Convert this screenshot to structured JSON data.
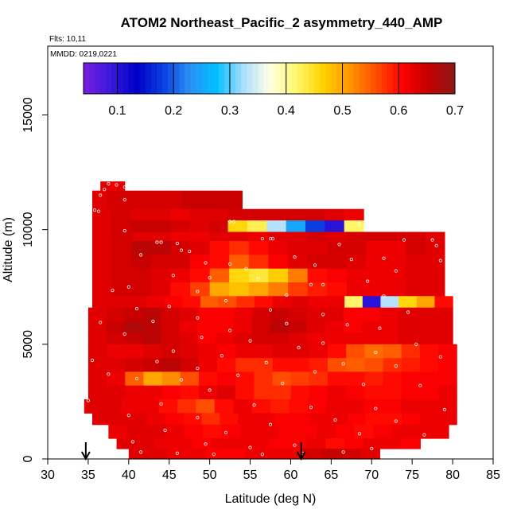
{
  "chart_data": {
    "type": "heatmap",
    "title": "ATOM2 Northeast_Pacific_2 asymmetry_440_AMP",
    "flights_label": "Flts: 10,11",
    "dates_label": "MMDD: 0219,0221",
    "xlabel": "Latitude (deg N)",
    "ylabel": "Altitude (m)",
    "xlim": [
      30,
      85
    ],
    "ylim": [
      0,
      18000
    ],
    "xticks": [
      "30",
      "35",
      "40",
      "45",
      "50",
      "55",
      "60",
      "65",
      "70",
      "75",
      "80",
      "85"
    ],
    "yticks": [
      "0",
      "5000",
      "10000",
      "15000"
    ],
    "colorbar": {
      "range": [
        0.04,
        0.7
      ],
      "ticks": [
        "0.1",
        "0.2",
        "0.3",
        "0.4",
        "0.5",
        "0.6",
        "0.7"
      ],
      "colors": [
        "#7a1fe0",
        "#3a1adb",
        "#0000c8",
        "#0b3fe0",
        "#2a8ff5",
        "#00c0ff",
        "#a8dcff",
        "#ffffe6",
        "#fff870",
        "#ffd400",
        "#ff9800",
        "#ff5000",
        "#ff0000",
        "#c40000",
        "#8b1a1a"
      ]
    },
    "arrows_at_latitude": [
      34.7,
      61.3
    ],
    "layers": [
      {
        "alt": [
          11700,
          12100
        ],
        "lat": [
          36.5,
          39.5
        ],
        "values": [
          0.63,
          0.62,
          0.63
        ]
      },
      {
        "alt": [
          10900,
          11700
        ],
        "lat": [
          35.5,
          54.0
        ],
        "values": [
          0.63,
          0.64,
          0.64,
          0.64,
          0.64,
          0.64,
          0.65,
          0.65,
          0.65,
          0.65
        ]
      },
      {
        "alt": [
          10400,
          10900
        ],
        "lat": [
          35.5,
          69.0
        ],
        "values": [
          0.63,
          0.64,
          0.63,
          0.63,
          0.62,
          0.63,
          0.63,
          0.64,
          0.64,
          0.64,
          0.64,
          0.64,
          0.63,
          0.62
        ]
      },
      {
        "alt": [
          9900,
          10400
        ],
        "lat": [
          35.5,
          69.0
        ],
        "values": [
          0.63,
          0.64,
          0.65,
          0.65,
          0.64,
          0.63,
          0.64,
          0.46,
          0.43,
          0.33,
          0.25,
          0.18,
          0.1,
          0.42
        ]
      },
      {
        "alt": [
          9500,
          9900
        ],
        "lat": [
          35.5,
          79.0
        ],
        "values": [
          0.63,
          0.64,
          0.63,
          0.63,
          0.62,
          0.62,
          0.63,
          0.63,
          0.62,
          0.63,
          0.63,
          0.64,
          0.63,
          0.64,
          0.64,
          0.64,
          0.64,
          0.63
        ]
      },
      {
        "alt": [
          8900,
          9500
        ],
        "lat": [
          35.5,
          79.0
        ],
        "values": [
          0.63,
          0.64,
          0.66,
          0.66,
          0.64,
          0.63,
          0.6,
          0.58,
          0.6,
          0.62,
          0.63,
          0.63,
          0.64,
          0.64,
          0.62,
          0.62,
          0.64,
          0.63
        ]
      },
      {
        "alt": [
          8300,
          8900
        ],
        "lat": [
          35.5,
          79.0
        ],
        "values": [
          0.63,
          0.64,
          0.65,
          0.64,
          0.64,
          0.61,
          0.6,
          0.55,
          0.58,
          0.61,
          0.63,
          0.64,
          0.64,
          0.63,
          0.62,
          0.62,
          0.63,
          0.63
        ]
      },
      {
        "alt": [
          7700,
          8300
        ],
        "lat": [
          35.5,
          79.0
        ],
        "values": [
          0.63,
          0.64,
          0.64,
          0.63,
          0.62,
          0.6,
          0.55,
          0.46,
          0.44,
          0.47,
          0.53,
          0.6,
          0.61,
          0.62,
          0.62,
          0.62,
          0.63,
          0.63
        ]
      },
      {
        "alt": [
          7100,
          7700
        ],
        "lat": [
          35.5,
          79.0
        ],
        "values": [
          0.63,
          0.64,
          0.64,
          0.63,
          0.6,
          0.57,
          0.5,
          0.48,
          0.5,
          0.53,
          0.57,
          0.59,
          0.6,
          0.62,
          0.62,
          0.62,
          0.63,
          0.63
        ]
      },
      {
        "alt": [
          6600,
          7100
        ],
        "lat": [
          35.5,
          80.0
        ],
        "values": [
          0.63,
          0.63,
          0.63,
          0.62,
          0.61,
          0.6,
          0.55,
          0.56,
          0.58,
          0.6,
          0.62,
          0.63,
          0.62,
          0.62,
          0.42,
          0.1,
          0.33,
          0.46,
          0.5,
          0.6
        ]
      },
      {
        "alt": [
          6000,
          6600
        ],
        "lat": [
          35.0,
          80.0
        ],
        "values": [
          0.63,
          0.64,
          0.65,
          0.66,
          0.64,
          0.63,
          0.61,
          0.61,
          0.62,
          0.64,
          0.65,
          0.64,
          0.63,
          0.63,
          0.61,
          0.61,
          0.62,
          0.63,
          0.63,
          0.63
        ]
      },
      {
        "alt": [
          5500,
          6000
        ],
        "lat": [
          35.0,
          80.0
        ],
        "values": [
          0.63,
          0.65,
          0.67,
          0.66,
          0.64,
          0.62,
          0.61,
          0.61,
          0.62,
          0.64,
          0.66,
          0.65,
          0.63,
          0.62,
          0.61,
          0.62,
          0.62,
          0.63,
          0.63,
          0.63
        ]
      },
      {
        "alt": [
          5000,
          5500
        ],
        "lat": [
          35.0,
          80.0
        ],
        "values": [
          0.63,
          0.64,
          0.65,
          0.66,
          0.64,
          0.63,
          0.61,
          0.62,
          0.63,
          0.64,
          0.64,
          0.63,
          0.62,
          0.62,
          0.62,
          0.62,
          0.62,
          0.63,
          0.63,
          0.63
        ]
      },
      {
        "alt": [
          4400,
          5000
        ],
        "lat": [
          35.0,
          80.5
        ],
        "values": [
          0.63,
          0.62,
          0.62,
          0.63,
          0.64,
          0.63,
          0.62,
          0.61,
          0.62,
          0.62,
          0.63,
          0.63,
          0.62,
          0.6,
          0.56,
          0.54,
          0.55,
          0.58,
          0.6,
          0.61
        ]
      },
      {
        "alt": [
          3800,
          4400
        ],
        "lat": [
          35.0,
          80.5
        ],
        "values": [
          0.63,
          0.63,
          0.64,
          0.65,
          0.66,
          0.64,
          0.62,
          0.6,
          0.58,
          0.58,
          0.6,
          0.6,
          0.59,
          0.56,
          0.55,
          0.56,
          0.58,
          0.59,
          0.6,
          0.61
        ]
      },
      {
        "alt": [
          3200,
          3800
        ],
        "lat": [
          35.0,
          80.5
        ],
        "values": [
          0.63,
          0.62,
          0.55,
          0.5,
          0.52,
          0.56,
          0.6,
          0.61,
          0.6,
          0.58,
          0.56,
          0.57,
          0.58,
          0.6,
          0.6,
          0.59,
          0.6,
          0.61,
          0.61,
          0.61
        ]
      },
      {
        "alt": [
          2600,
          3200
        ],
        "lat": [
          35.0,
          80.5
        ],
        "values": [
          0.63,
          0.63,
          0.62,
          0.62,
          0.61,
          0.6,
          0.62,
          0.63,
          0.6,
          0.58,
          0.58,
          0.6,
          0.61,
          0.62,
          0.61,
          0.6,
          0.6,
          0.61,
          0.61,
          0.62
        ]
      },
      {
        "alt": [
          2000,
          2600
        ],
        "lat": [
          34.5,
          80.5
        ],
        "values": [
          0.63,
          0.63,
          0.62,
          0.62,
          0.6,
          0.58,
          0.56,
          0.6,
          0.62,
          0.6,
          0.59,
          0.6,
          0.61,
          0.62,
          0.62,
          0.61,
          0.61,
          0.62,
          0.62,
          0.62
        ]
      },
      {
        "alt": [
          1500,
          2000
        ],
        "lat": [
          35.5,
          80.5
        ],
        "values": [
          0.63,
          0.63,
          0.63,
          0.62,
          0.61,
          0.6,
          0.58,
          0.6,
          0.62,
          0.62,
          0.61,
          0.61,
          0.62,
          0.62,
          0.61,
          0.6,
          0.6,
          0.61,
          0.62,
          0.62
        ]
      },
      {
        "alt": [
          900,
          1500
        ],
        "lat": [
          37.5,
          79.5
        ],
        "values": [
          0.62,
          0.63,
          0.63,
          0.62,
          0.61,
          0.6,
          0.61,
          0.62,
          0.62,
          0.61,
          0.61,
          0.62,
          0.61,
          0.6,
          0.61,
          0.62,
          0.62,
          0.62
        ]
      },
      {
        "alt": [
          450,
          900
        ],
        "lat": [
          38.5,
          76.0
        ],
        "values": [
          0.63,
          0.63,
          0.62,
          0.62,
          0.61,
          0.62,
          0.62,
          0.62,
          0.61,
          0.61,
          0.62,
          0.6,
          0.61,
          0.62,
          0.62,
          0.61
        ]
      },
      {
        "alt": [
          0,
          450
        ],
        "lat": [
          40.0,
          71.0
        ],
        "values": [
          0.63,
          0.63,
          0.62,
          0.62,
          0.61,
          0.61,
          0.62,
          0.62,
          0.62,
          0.64,
          0.65,
          0.64,
          0.63
        ]
      }
    ],
    "sample_points": [
      [
        37.5,
        12000
      ],
      [
        38.5,
        11950
      ],
      [
        39.5,
        11850
      ],
      [
        37.0,
        11750
      ],
      [
        36.5,
        11500
      ],
      [
        39.5,
        11300
      ],
      [
        35.8,
        10850
      ],
      [
        36.3,
        10800
      ],
      [
        52.5,
        10350
      ],
      [
        53.0,
        10350
      ],
      [
        68.5,
        10250
      ],
      [
        75.0,
        10000
      ],
      [
        39.5,
        9950
      ],
      [
        56.5,
        9600
      ],
      [
        57.5,
        9600
      ],
      [
        57.8,
        9600
      ],
      [
        74.0,
        9550
      ],
      [
        77.5,
        9550
      ],
      [
        43.5,
        9450
      ],
      [
        44.0,
        9450
      ],
      [
        46.0,
        9400
      ],
      [
        66.0,
        9350
      ],
      [
        78.0,
        9300
      ],
      [
        46.5,
        9100
      ],
      [
        47.5,
        9050
      ],
      [
        41.5,
        8900
      ],
      [
        60.5,
        8800
      ],
      [
        71.5,
        8750
      ],
      [
        67.5,
        8700
      ],
      [
        78.5,
        8650
      ],
      [
        49.5,
        8550
      ],
      [
        52.5,
        8500
      ],
      [
        63.0,
        8450
      ],
      [
        54.5,
        8300
      ],
      [
        73.0,
        8200
      ],
      [
        45.5,
        8000
      ],
      [
        50.0,
        7900
      ],
      [
        56.0,
        7850
      ],
      [
        69.5,
        7750
      ],
      [
        62.5,
        7600
      ],
      [
        64.0,
        7600
      ],
      [
        40.0,
        7500
      ],
      [
        38.0,
        7350
      ],
      [
        48.5,
        7300
      ],
      [
        59.5,
        7150
      ],
      [
        71.5,
        7100
      ],
      [
        52.0,
        6900
      ],
      [
        45.0,
        6650
      ],
      [
        41.0,
        6550
      ],
      [
        57.5,
        6500
      ],
      [
        74.5,
        6400
      ],
      [
        64.0,
        6300
      ],
      [
        48.5,
        6150
      ],
      [
        43.0,
        6000
      ],
      [
        36.5,
        5950
      ],
      [
        59.5,
        5900
      ],
      [
        67.0,
        5850
      ],
      [
        71.0,
        5700
      ],
      [
        52.5,
        5600
      ],
      [
        39.5,
        5450
      ],
      [
        49.0,
        5300
      ],
      [
        55.0,
        5150
      ],
      [
        64.0,
        5050
      ],
      [
        75.5,
        5000
      ],
      [
        45.5,
        4700
      ],
      [
        61.0,
        4850
      ],
      [
        70.5,
        4650
      ],
      [
        51.5,
        4500
      ],
      [
        78.5,
        4450
      ],
      [
        35.5,
        4300
      ],
      [
        43.5,
        4250
      ],
      [
        57.0,
        4200
      ],
      [
        66.5,
        4150
      ],
      [
        73.0,
        4050
      ],
      [
        48.5,
        3950
      ],
      [
        63.0,
        3800
      ],
      [
        37.5,
        3700
      ],
      [
        53.5,
        3650
      ],
      [
        41.0,
        3500
      ],
      [
        46.5,
        3450
      ],
      [
        59.0,
        3300
      ],
      [
        69.0,
        3250
      ],
      [
        76.0,
        3200
      ],
      [
        50.0,
        3000
      ],
      [
        35.0,
        2550
      ],
      [
        44.0,
        2400
      ],
      [
        55.5,
        2350
      ],
      [
        62.5,
        2250
      ],
      [
        70.5,
        2200
      ],
      [
        79.0,
        2150
      ],
      [
        40.0,
        1900
      ],
      [
        48.5,
        1800
      ],
      [
        65.5,
        1700
      ],
      [
        73.0,
        1650
      ],
      [
        57.5,
        1500
      ],
      [
        36.5,
        1350
      ],
      [
        44.5,
        1250
      ],
      [
        52.0,
        1150
      ],
      [
        68.5,
        1100
      ],
      [
        76.5,
        1050
      ],
      [
        80.0,
        1000
      ],
      [
        40.5,
        750
      ],
      [
        49.5,
        650
      ],
      [
        60.5,
        600
      ],
      [
        55.0,
        500
      ],
      [
        70.0,
        450
      ],
      [
        41.5,
        300
      ],
      [
        46.0,
        250
      ],
      [
        50.5,
        200
      ],
      [
        56.5,
        200
      ],
      [
        61.5,
        250
      ],
      [
        66.5,
        300
      ]
    ]
  }
}
